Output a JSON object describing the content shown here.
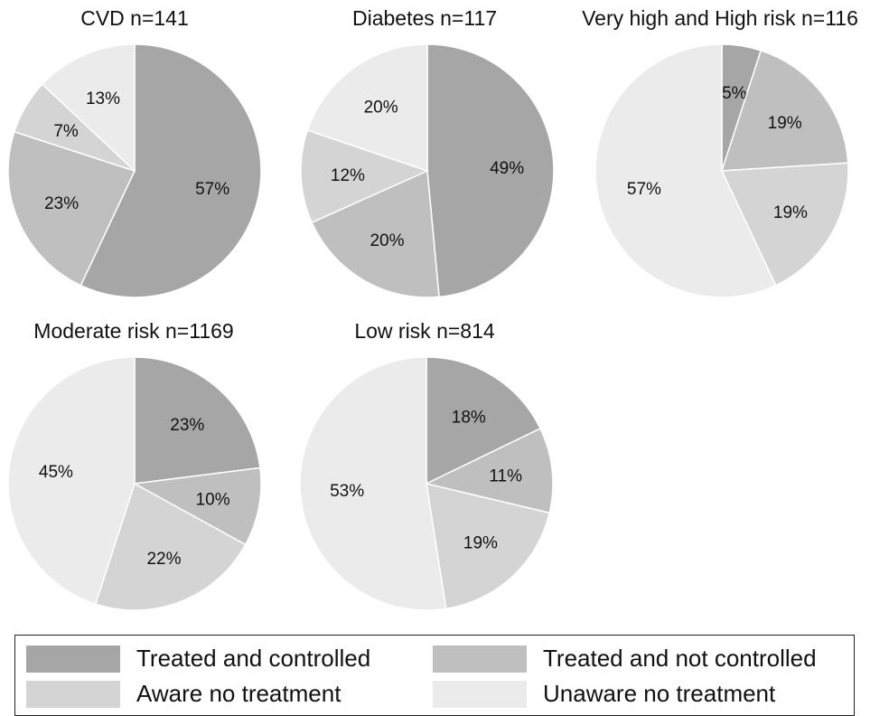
{
  "chart_data": [
    {
      "type": "pie",
      "title": "CVD n=141",
      "categories": [
        "Treated and controlled",
        "Treated and not controlled",
        "Aware no treatment",
        "Unaware no treatment"
      ],
      "values": [
        57,
        23,
        7,
        13
      ],
      "labels": [
        "57%",
        "23%",
        "7%",
        "13%"
      ]
    },
    {
      "type": "pie",
      "title": "Diabetes n=117",
      "categories": [
        "Treated and controlled",
        "Treated and not controlled",
        "Aware no treatment",
        "Unaware no treatment"
      ],
      "values": [
        49,
        20,
        12,
        20
      ],
      "labels": [
        "49%",
        "20%",
        "12%",
        "20%"
      ]
    },
    {
      "type": "pie",
      "title": "Very high and High risk n=116",
      "categories": [
        "Treated and controlled",
        "Treated and not controlled",
        "Aware no treatment",
        "Unaware no treatment"
      ],
      "values": [
        5,
        19,
        19,
        57
      ],
      "labels": [
        "5%",
        "19%",
        "19%",
        "57%"
      ]
    },
    {
      "type": "pie",
      "title": "Moderate risk n=1169",
      "categories": [
        "Treated and controlled",
        "Treated and not controlled",
        "Aware no treatment",
        "Unaware no treatment"
      ],
      "values": [
        23,
        10,
        22,
        45
      ],
      "labels": [
        "23%",
        "10%",
        "22%",
        "45%"
      ]
    },
    {
      "type": "pie",
      "title": "Low risk n=814",
      "categories": [
        "Treated and controlled",
        "Treated and not controlled",
        "Aware no treatment",
        "Unaware no treatment"
      ],
      "values": [
        18,
        11,
        19,
        53
      ],
      "labels": [
        "18%",
        "11%",
        "19%",
        "53%"
      ]
    }
  ],
  "colors": [
    "#a6a6a6",
    "#bfbfbf",
    "#d4d4d4",
    "#ebebeb"
  ],
  "legend": {
    "items": [
      {
        "label": "Treated and controlled",
        "color": "#a6a6a6"
      },
      {
        "label": "Treated and not controlled",
        "color": "#bfbfbf"
      },
      {
        "label": " Aware no treatment",
        "color": "#d4d4d4"
      },
      {
        "label": "Unaware no treatment",
        "color": "#ebebeb"
      }
    ]
  }
}
